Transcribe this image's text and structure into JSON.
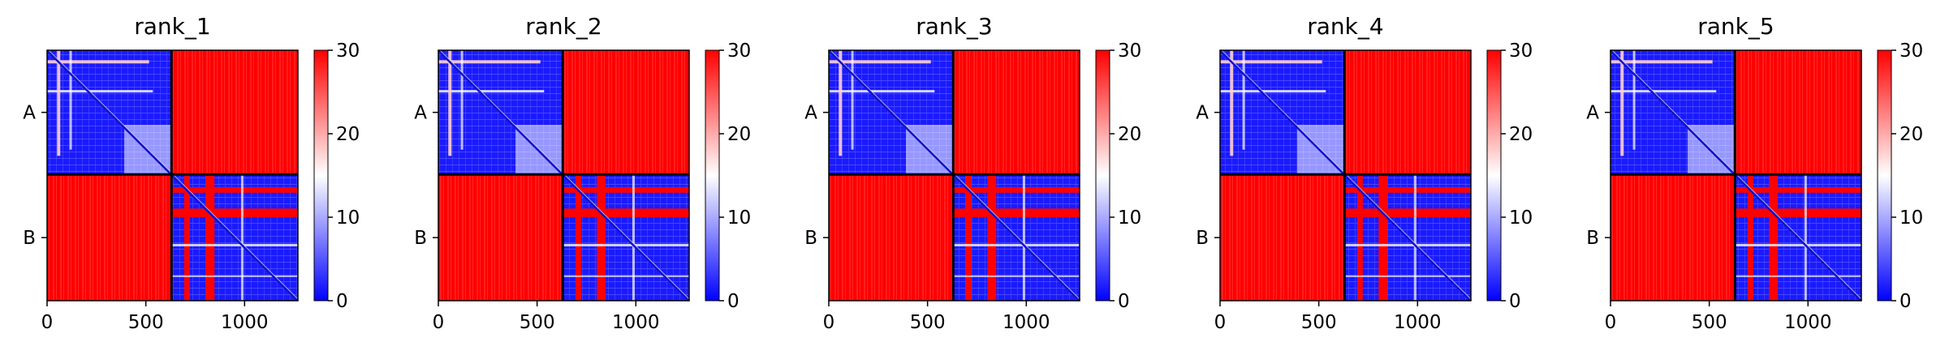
{
  "chart_data": {
    "type": "heatmap",
    "panels": [
      {
        "title": "rank_1"
      },
      {
        "title": "rank_2"
      },
      {
        "title": "rank_3"
      },
      {
        "title": "rank_4"
      },
      {
        "title": "rank_5"
      }
    ],
    "xlim": [
      0,
      1270
    ],
    "x_ticks": [
      0,
      500,
      1000
    ],
    "chains": [
      "A",
      "B"
    ],
    "chain_boundary": 630,
    "colorbar": {
      "vmin": 0,
      "vmax": 30,
      "ticks": [
        0,
        10,
        20,
        30
      ],
      "colors": {
        "low": "#0000ff",
        "mid": "#ffffff",
        "high": "#ff0000"
      }
    },
    "colors": {
      "axis": "#000000",
      "background": "#ffffff"
    }
  }
}
